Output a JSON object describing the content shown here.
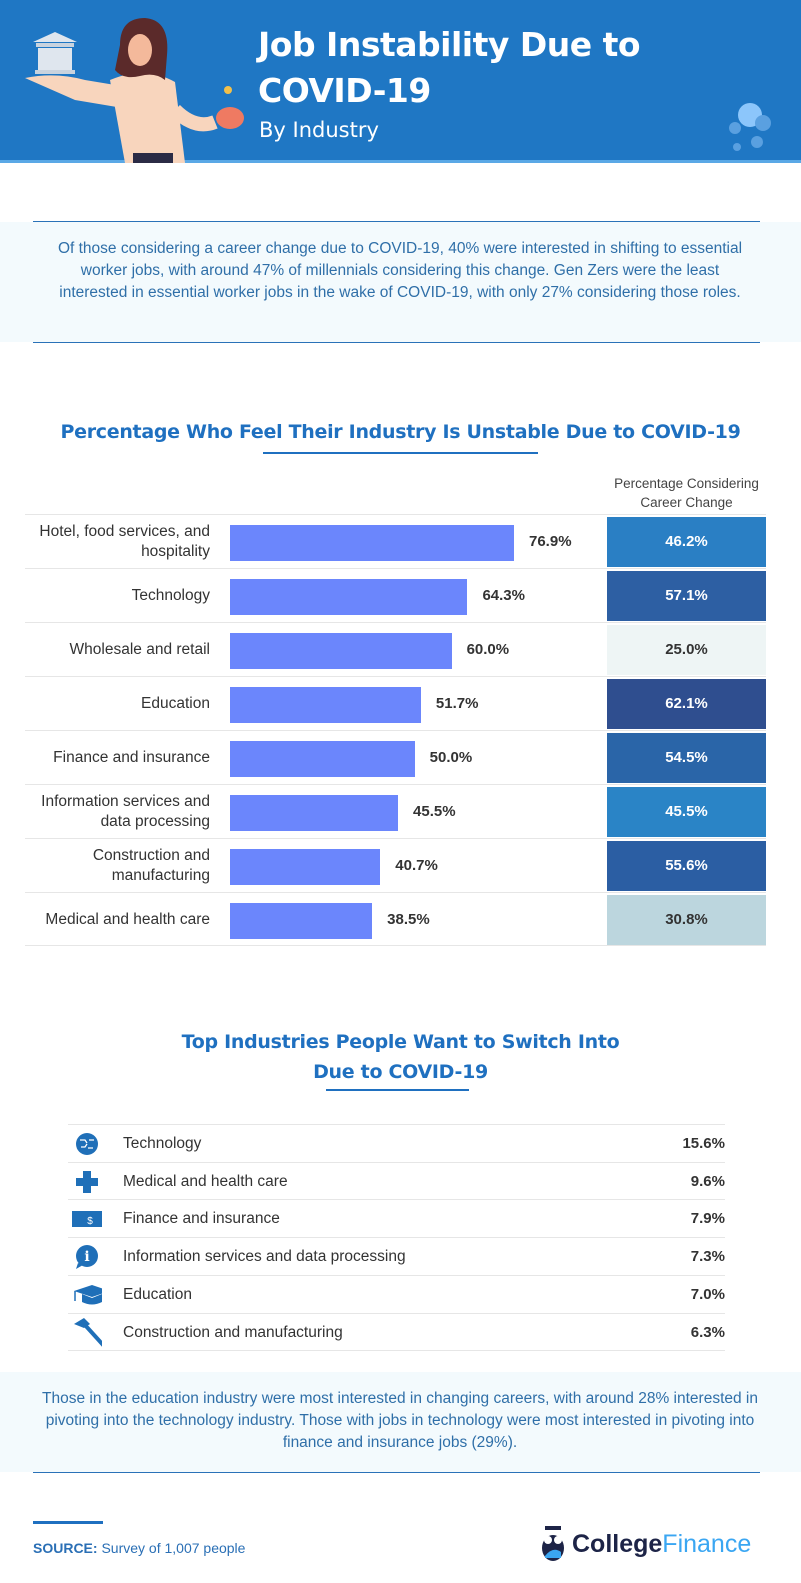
{
  "header": {
    "title_line1": "Job Instability Due to",
    "title_line2": "COVID-19",
    "subtitle": "By Industry",
    "bg_color": "#1f77c4"
  },
  "intro": "Of those considering a career change due to COVID-19, 40% were interested in shifting to essential worker jobs, with around 47% of millennials considering this change. Gen Zers were the least interested in essential worker jobs in the wake of COVID-19, with only 27% considering those roles.",
  "chart_data": {
    "type": "bar",
    "title": "Percentage Who Feel Their Industry Is Unstable Due to COVID-19",
    "orientation": "horizontal",
    "categories": [
      "Hotel, food services, and hospitality",
      "Technology",
      "Wholesale and retail",
      "Education",
      "Finance and insurance",
      "Information services and data processing",
      "Construction and manufacturing",
      "Medical and health care"
    ],
    "values": [
      76.9,
      64.3,
      60.0,
      51.7,
      50.0,
      45.5,
      40.7,
      38.5
    ],
    "value_labels": [
      "76.9%",
      "64.3%",
      "60.0%",
      "51.7%",
      "50.0%",
      "45.5%",
      "40.7%",
      "38.5%"
    ],
    "bar_color": "#6b86fc",
    "side_column": {
      "header": "Percentage Considering Career Change",
      "values": [
        46.2,
        57.1,
        25.0,
        62.1,
        54.5,
        45.5,
        55.6,
        30.8
      ],
      "labels": [
        "46.2%",
        "57.1%",
        "25.0%",
        "62.1%",
        "54.5%",
        "45.5%",
        "55.6%",
        "30.8%"
      ],
      "colors": [
        "#2a7fc4",
        "#2d5fa3",
        "#eef5f5",
        "#2f4e8f",
        "#2a65a8",
        "#2a84c6",
        "#2b5ea3",
        "#bcd6de"
      ]
    }
  },
  "switch": {
    "title_line1": "Top Industries People Want to Switch Into",
    "title_line2": "Due to COVID-19",
    "items": [
      {
        "label": "Technology",
        "value": "15.6%",
        "icon": "circuit-globe-icon"
      },
      {
        "label": "Medical and health care",
        "value": "9.6%",
        "icon": "medical-cross-icon"
      },
      {
        "label": "Finance and insurance",
        "value": "7.9%",
        "icon": "dollar-bill-icon"
      },
      {
        "label": "Information services and data processing",
        "value": "7.3%",
        "icon": "info-bubble-icon"
      },
      {
        "label": "Education",
        "value": "7.0%",
        "icon": "graduation-cap-icon"
      },
      {
        "label": "Construction and manufacturing",
        "value": "6.3%",
        "icon": "hammer-icon"
      }
    ]
  },
  "outro": "Those in the education industry were most interested in changing careers, with around 28% interested in pivoting into the technology industry. Those with jobs in technology were most interested in pivoting into finance and insurance jobs (29%).",
  "footer": {
    "source_label": "SOURCE:",
    "source_text": "Survey of 1,007 people",
    "logo_part1": "College",
    "logo_part2": "Finance"
  }
}
